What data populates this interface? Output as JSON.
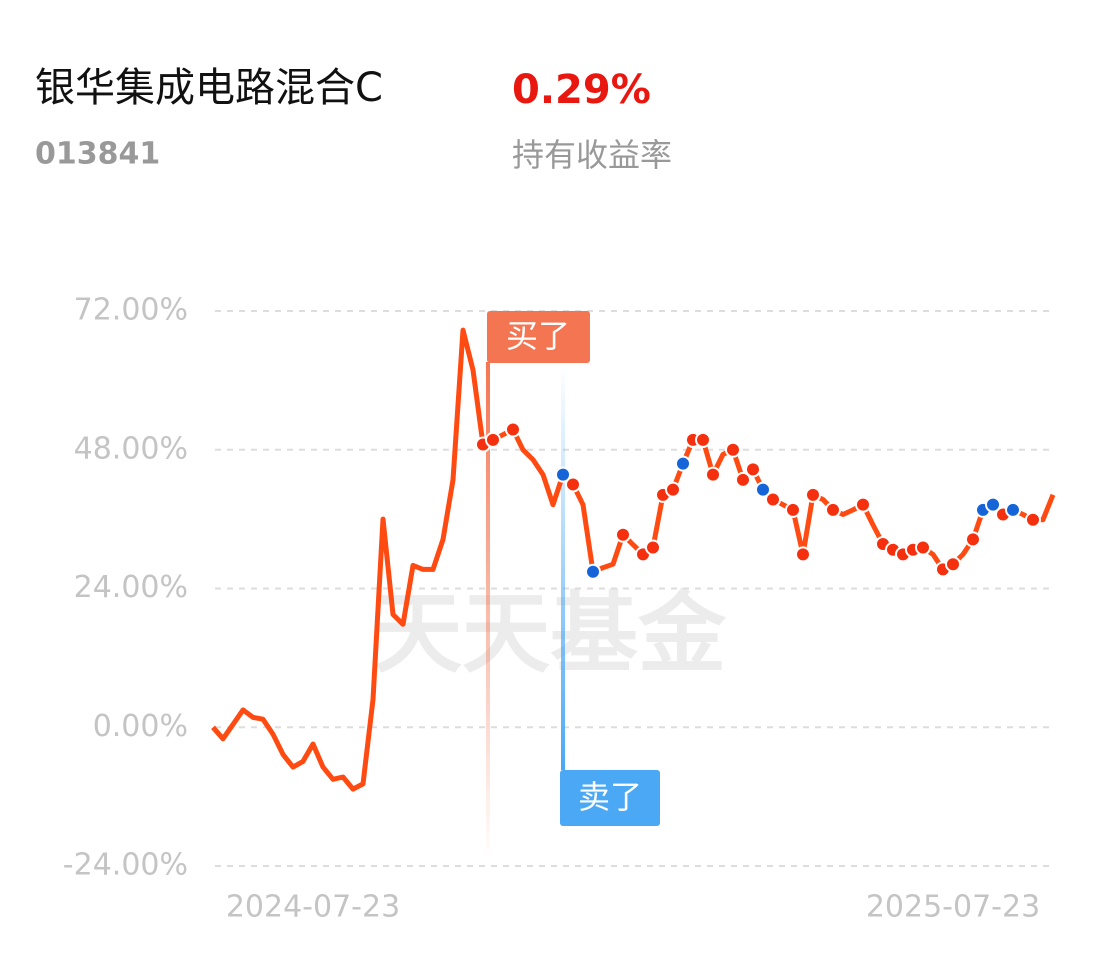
{
  "header": {
    "title": "银华集成电路混合C",
    "code": "013841",
    "return_value": "0.29%",
    "return_label": "持有收益率"
  },
  "chart_data": {
    "type": "line",
    "watermark": "天天基金",
    "categories": [
      null,
      null,
      null,
      null,
      null,
      null,
      null,
      null,
      null,
      null,
      "2024-07-23",
      null,
      null,
      null,
      null,
      null,
      null,
      null,
      null,
      null,
      null,
      null,
      null,
      null,
      null,
      null,
      null,
      null,
      null,
      null,
      null,
      null,
      null,
      null,
      null,
      null,
      null,
      null,
      null,
      null,
      null,
      null,
      null,
      null,
      null,
      null,
      null,
      null,
      null,
      null,
      null,
      null,
      null,
      null,
      null,
      null,
      null,
      null,
      null,
      null,
      null,
      null,
      null,
      null,
      null,
      null,
      null,
      null,
      null,
      null,
      null,
      null,
      null,
      null,
      "2025-07-23",
      null,
      null,
      null,
      null,
      null,
      null,
      null,
      null,
      null,
      null
    ],
    "series": [
      {
        "color": "#ff4a12",
        "style": "line",
        "values": [
          0,
          -2,
          0.5,
          3,
          1.7,
          1.4,
          -1.2,
          -4.7,
          -6.9,
          -5.9,
          -2.9,
          -6.9,
          -9,
          -8.6,
          -10.7,
          -9.8,
          4.8,
          36,
          19.5,
          17.8,
          28,
          27.3,
          27.3,
          32.5,
          42.8,
          68.7,
          61.8,
          48.9,
          49.7,
          50.6,
          51.5,
          48,
          46.3,
          43.7,
          38.5,
          43.7,
          42,
          38.5,
          26.9,
          27.6,
          28.2,
          33.3,
          31.6,
          29.9,
          31.1,
          40.2,
          41.1,
          45.6,
          49.7,
          49.7,
          43.7,
          47.2,
          48,
          42.8,
          44.6,
          41.1,
          39.4,
          38.5,
          37.6,
          29.9,
          40.2,
          39.4,
          37.6,
          36.8,
          37.6,
          38.5,
          35,
          31.7,
          30.7,
          29.9,
          30.7,
          31.1,
          29.9,
          27.3,
          28.2,
          29.9,
          32.5,
          37.6,
          38.5,
          36.8,
          37.6,
          36.8,
          35.9,
          35.9,
          40.2
        ]
      },
      {
        "color": "#f5300f",
        "style": "dots",
        "values": [
          null,
          null,
          null,
          null,
          null,
          null,
          null,
          null,
          null,
          null,
          null,
          null,
          null,
          null,
          null,
          null,
          null,
          null,
          null,
          null,
          null,
          null,
          null,
          null,
          null,
          null,
          null,
          48.9,
          49.7,
          null,
          51.5,
          null,
          null,
          null,
          null,
          null,
          42,
          null,
          null,
          null,
          null,
          33.3,
          null,
          29.9,
          31.1,
          40.2,
          41.1,
          null,
          49.7,
          49.7,
          43.7,
          null,
          48,
          42.8,
          44.6,
          null,
          39.4,
          null,
          37.6,
          29.9,
          40.2,
          null,
          37.6,
          null,
          null,
          38.5,
          null,
          31.7,
          30.7,
          29.9,
          30.7,
          31.1,
          null,
          27.3,
          28.2,
          null,
          32.5,
          null,
          null,
          36.8,
          null,
          null,
          35.9,
          null,
          null
        ]
      },
      {
        "color": "#1565d8",
        "style": "dots",
        "values": [
          null,
          null,
          null,
          null,
          null,
          null,
          null,
          null,
          null,
          null,
          null,
          null,
          null,
          null,
          null,
          null,
          null,
          null,
          null,
          null,
          null,
          null,
          null,
          null,
          null,
          null,
          null,
          null,
          null,
          null,
          null,
          null,
          null,
          null,
          null,
          43.7,
          null,
          null,
          26.9,
          null,
          null,
          null,
          null,
          null,
          null,
          null,
          null,
          45.6,
          null,
          null,
          null,
          null,
          null,
          null,
          null,
          41.1,
          null,
          null,
          null,
          null,
          null,
          null,
          null,
          null,
          null,
          null,
          null,
          null,
          null,
          null,
          null,
          null,
          null,
          null,
          null,
          null,
          null,
          37.6,
          38.5,
          null,
          37.6,
          null,
          null,
          null,
          null
        ]
      }
    ],
    "annotations": [
      {
        "text": "买了",
        "index": 27,
        "color": "#f47552"
      },
      {
        "text": "卖了",
        "index": 35,
        "color": "#4aa8f5"
      }
    ],
    "ylim": [
      -24,
      72
    ],
    "yticks": [
      {
        "value": -24,
        "label": "-24.00%"
      },
      {
        "value": 0,
        "label": "0.00%"
      },
      {
        "value": 24,
        "label": "24.00%"
      },
      {
        "value": 48,
        "label": "48.00%"
      },
      {
        "value": 72,
        "label": "72.00%"
      }
    ],
    "grid": true
  }
}
